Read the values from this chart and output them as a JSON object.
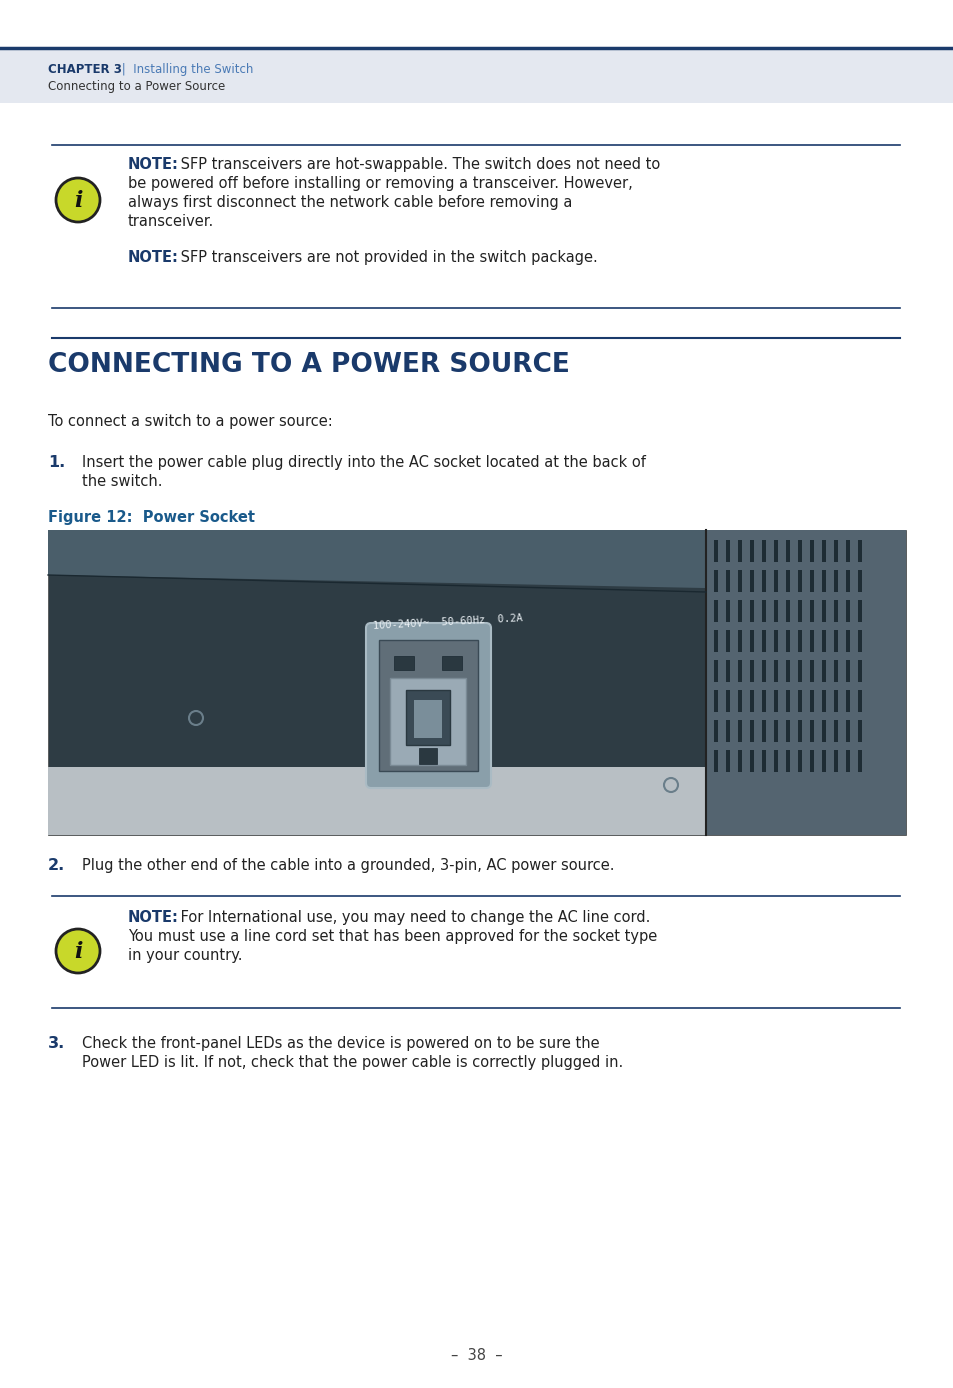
{
  "page_bg": "#ffffff",
  "header_bg": "#e4e8f0",
  "header_line_color": "#1a3a6b",
  "header_chapter": "CHAPTER 3",
  "header_chapter_color": "#1a3a6b",
  "header_subtitle": " |  Installing the Switch",
  "header_subtitle_color": "#4a7ab5",
  "header_breadcrumb": "Connecting to a Power Source",
  "header_breadcrumb_color": "#333333",
  "note_icon_bg": "#c8d82a",
  "note_icon_border": "#222222",
  "note_text_color": "#222222",
  "note_label_color": "#1a3a6b",
  "note_line_color": "#1a3a6b",
  "note1_label": "NOTE:",
  "note1_line1_rest": " SFP transceivers are hot-swappable. The switch does not need to",
  "note1_line2": "be powered off before installing or removing a transceiver. However,",
  "note1_line3": "always first disconnect the network cable before removing a",
  "note1_line4": "transceiver.",
  "note1_label2": "NOTE:",
  "note1_line5_rest": " SFP transceivers are not provided in the switch package.",
  "section_title": "CONNECTING TO A POWER SOURCE",
  "section_title_color": "#1a3a6b",
  "section_line_color": "#1a3a6b",
  "body_text_color": "#222222",
  "intro_text": "To connect a switch to a power source:",
  "step1_num": "1.",
  "step1_line1": "Insert the power cable plug directly into the AC socket located at the back of",
  "step1_line2": "the switch.",
  "figure_label": "Figure 12:  Power Socket",
  "figure_label_color": "#1a5a8b",
  "step2_num": "2.",
  "step2_text": "Plug the other end of the cable into a grounded, 3-pin, AC power source.",
  "note2_label": "NOTE:",
  "note2_line1_rest": " For International use, you may need to change the AC line cord.",
  "note2_line2": "You must use a line cord set that has been approved for the socket type",
  "note2_line3": "in your country.",
  "step3_num": "3.",
  "step3_line1": "Check the front-panel LEDs as the device is powered on to be sure the",
  "step3_line2": "Power LED is lit. If not, check that the power cable is correctly plugged in.",
  "page_num": "–  38  –",
  "page_num_color": "#444444",
  "switch_label": "100-240V~  50-60Hz  0.2A",
  "switch_body_dark": "#2e3c44",
  "switch_body_mid": "#3a4c56",
  "switch_top_color": "#4a5e6a",
  "switch_right_color": "#546470",
  "switch_shadow_color": "#b8bfc4",
  "vent_color": "#1e2c34",
  "socket_plate_color": "#8a9faa",
  "socket_inner_color": "#606e78",
  "socket_slot_color": "#2a3840"
}
